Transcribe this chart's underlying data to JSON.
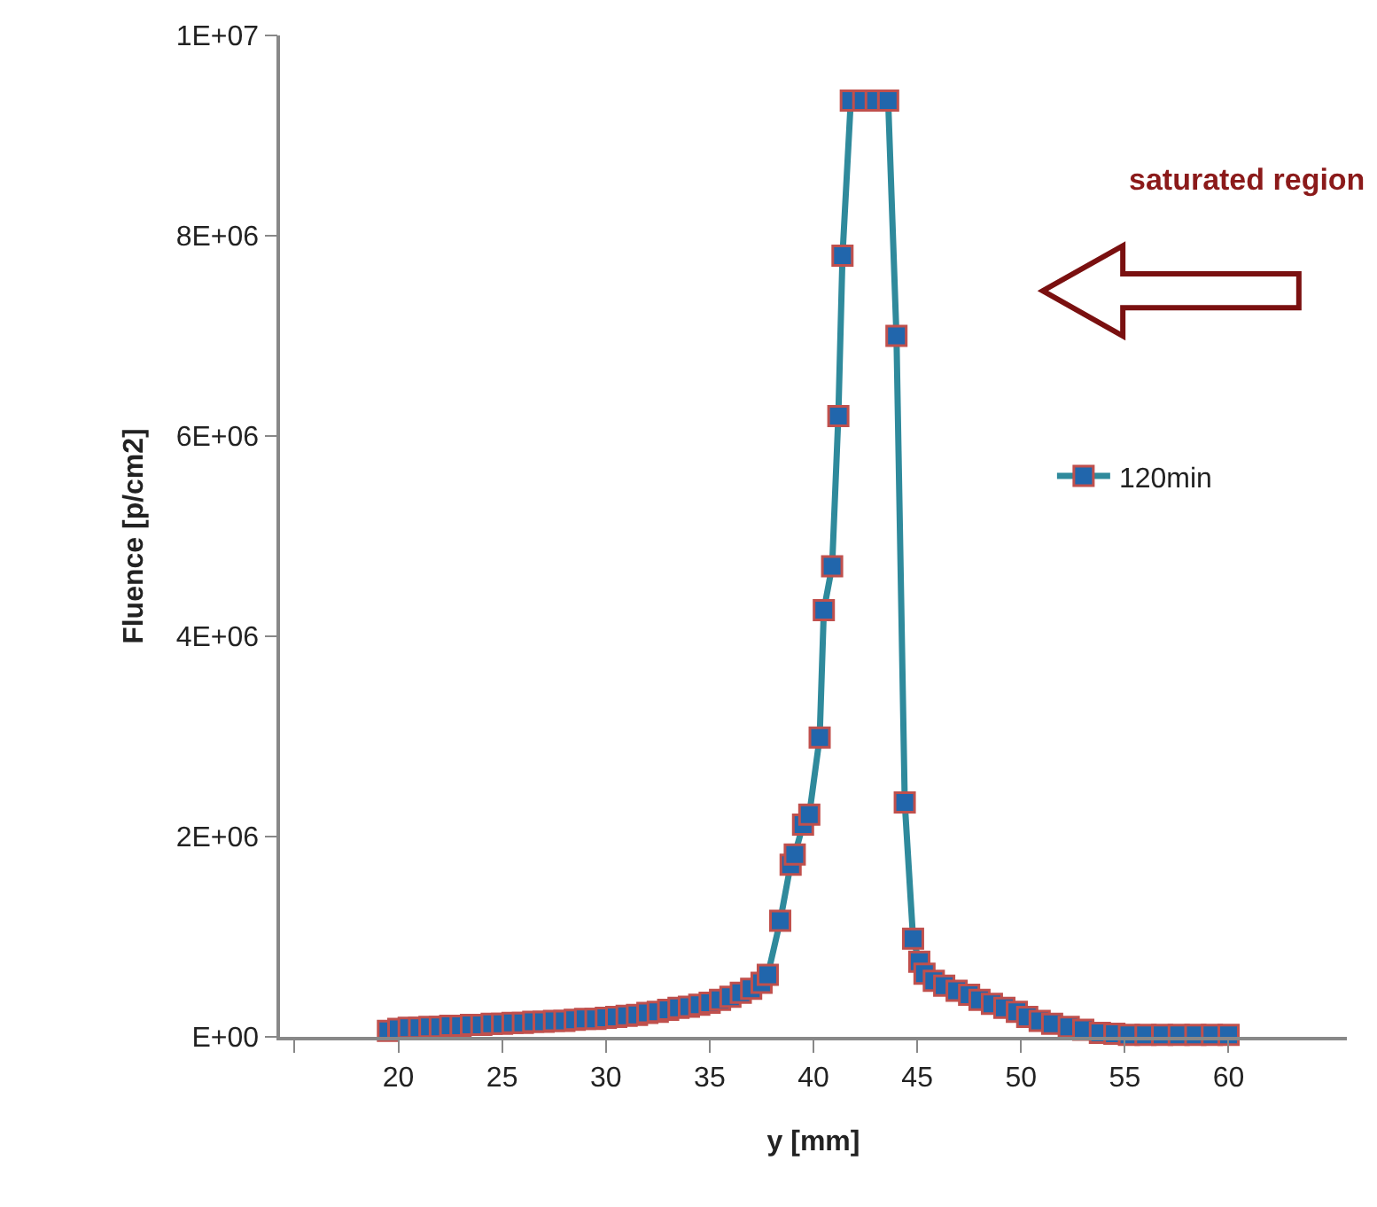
{
  "chart_data": {
    "type": "line",
    "ylabel": "Fluence [p/cm2]",
    "xlabel": "y [mm]",
    "x": [
      19.5,
      20,
      20.5,
      21,
      21.5,
      22,
      22.5,
      23,
      23.5,
      24,
      24.5,
      25,
      25.5,
      26,
      26.5,
      27,
      27.5,
      28,
      28.5,
      29,
      29.5,
      30,
      30.5,
      31,
      31.5,
      32,
      32.5,
      33,
      33.5,
      34,
      34.5,
      35,
      35.5,
      36,
      36.5,
      37,
      37.5,
      37.8,
      38.4,
      38.9,
      39.1,
      39.5,
      39.8,
      40.3,
      40.5,
      40.9,
      41.2,
      41.4,
      41.8,
      42.4,
      43.0,
      43.6,
      44.0,
      44.4,
      44.8,
      45.1,
      45.35,
      45.8,
      46.3,
      46.9,
      47.5,
      48.0,
      48.6,
      49.2,
      49.8,
      50.3,
      50.9,
      51.5,
      52.3,
      53.0,
      53.8,
      54.5,
      55.2,
      56.0,
      56.8,
      57.6,
      58.4,
      59.2,
      60.0
    ],
    "series": [
      {
        "name": "120min",
        "color": "#2f8a9c",
        "values": [
          60000,
          80000,
          90000,
          90000,
          100000,
          100000,
          110000,
          110000,
          120000,
          120000,
          130000,
          130000,
          140000,
          140000,
          150000,
          150000,
          160000,
          160000,
          170000,
          180000,
          180000,
          190000,
          200000,
          210000,
          220000,
          240000,
          250000,
          270000,
          290000,
          300000,
          320000,
          340000,
          370000,
          400000,
          440000,
          480000,
          540000,
          620000,
          1160000,
          1720000,
          1820000,
          2120000,
          2220000,
          2990000,
          4260000,
          4700000,
          6200000,
          7800000,
          9350000,
          9350000,
          9350000,
          9350000,
          7000000,
          2340000,
          980000,
          750000,
          630000,
          560000,
          510000,
          460000,
          420000,
          370000,
          330000,
          290000,
          250000,
          200000,
          160000,
          130000,
          100000,
          70000,
          40000,
          30000,
          20000,
          20000,
          20000,
          20000,
          20000,
          20000,
          20000
        ]
      }
    ],
    "xlim": [
      14.3,
      65.7
    ],
    "xticks": [
      {
        "value": 15,
        "label": null
      },
      20,
      25,
      30,
      35,
      40,
      45,
      50,
      55,
      60
    ],
    "ylim": [
      0,
      10000000
    ],
    "yticks": [
      {
        "value": 0,
        "label": "E+00"
      },
      {
        "value": 2000000,
        "label": "2E+06"
      },
      {
        "value": 4000000,
        "label": "4E+06"
      },
      {
        "value": 6000000,
        "label": "6E+06"
      },
      {
        "value": 8000000,
        "label": "8E+06"
      },
      {
        "value": 10000000,
        "label": "1E+07"
      }
    ],
    "legend": "right",
    "marker": "square",
    "line_style": "solid",
    "annotations": [
      "saturated region"
    ]
  }
}
